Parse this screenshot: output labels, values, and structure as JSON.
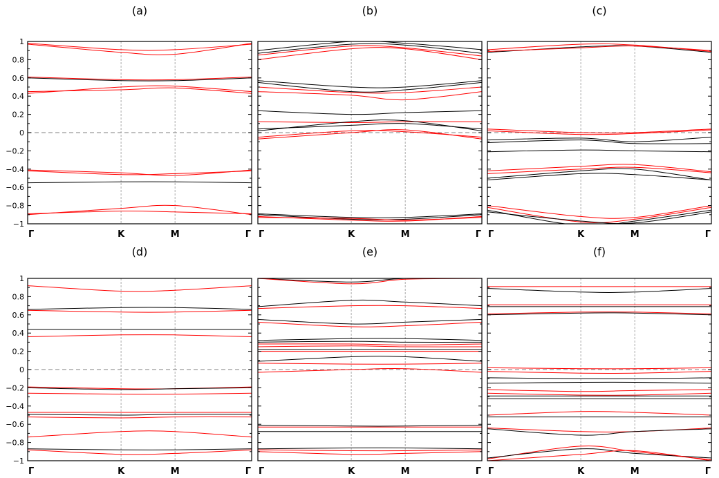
{
  "figure": {
    "background": "#ffffff"
  },
  "chart_data": [
    {
      "type": "line",
      "title": "(a)",
      "ylim": [
        -1,
        1
      ],
      "yticks": [
        1,
        0.8,
        0.6,
        0.4,
        0.2,
        0,
        -0.2,
        -0.4,
        -0.6,
        -0.8,
        -1
      ],
      "ytick_labels": [
        "1",
        "0.8",
        "0.6",
        "0.4",
        "0.2",
        "0",
        "−0.2",
        "−0.4",
        "−0.6",
        "−0.8",
        "−1"
      ],
      "x": [
        0,
        0.417,
        0.658,
        1
      ],
      "xtick_labels": [
        "Γ",
        "K",
        "M",
        "Γ"
      ],
      "fermi_level": 0,
      "series": [
        {
          "color": "#ff0000",
          "values": [
            0.97,
            0.88,
            0.86,
            0.98
          ]
        },
        {
          "color": "#ff0000",
          "values": [
            0.98,
            0.91,
            0.91,
            0.97
          ]
        },
        {
          "color": "#ff0000",
          "values": [
            0.61,
            0.58,
            0.58,
            0.61
          ]
        },
        {
          "color": "#000000",
          "values": [
            0.6,
            0.57,
            0.57,
            0.6
          ]
        },
        {
          "color": "#ff0000",
          "values": [
            0.43,
            0.5,
            0.51,
            0.45
          ]
        },
        {
          "color": "#ff0000",
          "values": [
            0.45,
            0.47,
            0.49,
            0.43
          ]
        },
        {
          "color": "#ff0000",
          "values": [
            -0.41,
            -0.44,
            -0.47,
            -0.41
          ]
        },
        {
          "color": "#ff0000",
          "values": [
            -0.42,
            -0.46,
            -0.45,
            -0.42
          ]
        },
        {
          "color": "#000000",
          "values": [
            -0.55,
            -0.54,
            -0.54,
            -0.55
          ]
        },
        {
          "color": "#ff0000",
          "values": [
            -0.9,
            -0.83,
            -0.8,
            -0.9
          ]
        },
        {
          "color": "#ff0000",
          "values": [
            -0.89,
            -0.86,
            -0.87,
            -0.89
          ]
        }
      ]
    },
    {
      "type": "line",
      "title": "(b)",
      "ylim": [
        -1,
        1
      ],
      "yticks": [
        1,
        0.8,
        0.6,
        0.4,
        0.2,
        0,
        -0.2,
        -0.4,
        -0.6,
        -0.8,
        -1
      ],
      "ytick_labels": [
        "",
        "",
        "",
        "",
        "",
        "",
        "",
        "",
        "",
        "",
        ""
      ],
      "x": [
        0,
        0.417,
        0.658,
        1
      ],
      "xtick_labels": [
        "Γ",
        "K",
        "M",
        "Γ"
      ],
      "fermi_level": 0,
      "series": [
        {
          "color": "#000000",
          "values": [
            0.9,
            1.0,
            0.98,
            0.91
          ]
        },
        {
          "color": "#000000",
          "values": [
            0.87,
            0.97,
            0.96,
            0.87
          ]
        },
        {
          "color": "#ff0000",
          "values": [
            0.85,
            0.95,
            0.93,
            0.84
          ]
        },
        {
          "color": "#ff0000",
          "values": [
            0.8,
            0.92,
            0.92,
            0.8
          ]
        },
        {
          "color": "#000000",
          "values": [
            0.57,
            0.5,
            0.5,
            0.57
          ]
        },
        {
          "color": "#000000",
          "values": [
            0.55,
            0.45,
            0.47,
            0.55
          ]
        },
        {
          "color": "#ff0000",
          "values": [
            0.5,
            0.44,
            0.44,
            0.5
          ]
        },
        {
          "color": "#ff0000",
          "values": [
            0.45,
            0.41,
            0.36,
            0.45
          ]
        },
        {
          "color": "#000000",
          "values": [
            0.24,
            0.2,
            0.22,
            0.24
          ]
        },
        {
          "color": "#ff0000",
          "values": [
            0.12,
            0.11,
            0.12,
            0.12
          ]
        },
        {
          "color": "#000000",
          "values": [
            0.02,
            0.12,
            0.13,
            0.02
          ]
        },
        {
          "color": "#000000",
          "values": [
            0.04,
            0.08,
            0.1,
            0.04
          ]
        },
        {
          "color": "#ff0000",
          "values": [
            -0.05,
            0.02,
            0.01,
            -0.05
          ]
        },
        {
          "color": "#ff0000",
          "values": [
            -0.07,
            0.0,
            0.03,
            -0.07
          ]
        },
        {
          "color": "#000000",
          "values": [
            -0.89,
            -0.93,
            -0.93,
            -0.89
          ]
        },
        {
          "color": "#000000",
          "values": [
            -0.9,
            -0.95,
            -0.95,
            -0.9
          ]
        },
        {
          "color": "#ff0000",
          "values": [
            -0.92,
            -0.96,
            -0.97,
            -0.92
          ]
        },
        {
          "color": "#ff0000",
          "values": [
            -0.93,
            -0.94,
            -0.96,
            -0.93
          ]
        }
      ]
    },
    {
      "type": "line",
      "title": "(c)",
      "ylim": [
        -1,
        1
      ],
      "yticks": [
        1,
        0.8,
        0.6,
        0.4,
        0.2,
        0,
        -0.2,
        -0.4,
        -0.6,
        -0.8,
        -1
      ],
      "ytick_labels": [
        "",
        "",
        "",
        "",
        "",
        "",
        "",
        "",
        "",
        "",
        ""
      ],
      "x": [
        0,
        0.417,
        0.658,
        1
      ],
      "xtick_labels": [
        "Γ",
        "K",
        "M",
        "Γ"
      ],
      "fermi_level": 0,
      "series": [
        {
          "color": "#ff0000",
          "values": [
            0.91,
            0.97,
            0.96,
            0.89
          ]
        },
        {
          "color": "#000000",
          "values": [
            0.88,
            0.94,
            0.95,
            0.88
          ]
        },
        {
          "color": "#ff0000",
          "values": [
            0.89,
            0.93,
            0.95,
            0.9
          ]
        },
        {
          "color": "#ff0000",
          "values": [
            0.04,
            0.0,
            0.0,
            0.04
          ]
        },
        {
          "color": "#ff0000",
          "values": [
            0.02,
            -0.02,
            -0.01,
            0.03
          ]
        },
        {
          "color": "#000000",
          "values": [
            -0.08,
            -0.06,
            -0.1,
            -0.05
          ]
        },
        {
          "color": "#000000",
          "values": [
            -0.11,
            -0.08,
            -0.12,
            -0.12
          ]
        },
        {
          "color": "#000000",
          "values": [
            -0.21,
            -0.19,
            -0.2,
            -0.21
          ]
        },
        {
          "color": "#ff0000",
          "values": [
            -0.42,
            -0.37,
            -0.35,
            -0.43
          ]
        },
        {
          "color": "#ff0000",
          "values": [
            -0.45,
            -0.4,
            -0.38,
            -0.44
          ]
        },
        {
          "color": "#000000",
          "values": [
            -0.5,
            -0.42,
            -0.4,
            -0.52
          ]
        },
        {
          "color": "#000000",
          "values": [
            -0.52,
            -0.45,
            -0.46,
            -0.52
          ]
        },
        {
          "color": "#ff0000",
          "values": [
            -0.8,
            -0.92,
            -0.93,
            -0.8
          ]
        },
        {
          "color": "#ff0000",
          "values": [
            -0.82,
            -0.98,
            -0.95,
            -0.82
          ]
        },
        {
          "color": "#000000",
          "values": [
            -0.87,
            -0.97,
            -0.99,
            -0.87
          ]
        },
        {
          "color": "#000000",
          "values": [
            -0.85,
            -1.02,
            -0.97,
            -0.85
          ]
        }
      ]
    },
    {
      "type": "line",
      "title": "(d)",
      "ylim": [
        -1,
        1
      ],
      "yticks": [
        1,
        0.8,
        0.6,
        0.4,
        0.2,
        0,
        -0.2,
        -0.4,
        -0.6,
        -0.8,
        -1
      ],
      "ytick_labels": [
        "1",
        "0.8",
        "0.6",
        "0.4",
        "0.2",
        "0",
        "−0.2",
        "−0.4",
        "−0.6",
        "−0.8",
        "−1"
      ],
      "x": [
        0,
        0.417,
        0.658,
        1
      ],
      "xtick_labels": [
        "Γ",
        "K",
        "M",
        "Γ"
      ],
      "fermi_level": 0,
      "series": [
        {
          "color": "#ff0000",
          "values": [
            0.92,
            0.86,
            0.87,
            0.92
          ]
        },
        {
          "color": "#000000",
          "values": [
            0.66,
            0.68,
            0.68,
            0.66
          ]
        },
        {
          "color": "#ff0000",
          "values": [
            0.65,
            0.63,
            0.63,
            0.65
          ]
        },
        {
          "color": "#000000",
          "values": [
            0.44,
            0.44,
            0.44,
            0.44
          ]
        },
        {
          "color": "#ff0000",
          "values": [
            0.36,
            0.38,
            0.38,
            0.36
          ]
        },
        {
          "color": "#ff0000",
          "values": [
            -0.19,
            -0.21,
            -0.21,
            -0.19
          ]
        },
        {
          "color": "#000000",
          "values": [
            -0.2,
            -0.22,
            -0.21,
            -0.2
          ]
        },
        {
          "color": "#ff0000",
          "values": [
            -0.26,
            -0.27,
            -0.27,
            -0.26
          ]
        },
        {
          "color": "#ff0000",
          "values": [
            -0.47,
            -0.47,
            -0.47,
            -0.47
          ]
        },
        {
          "color": "#000000",
          "values": [
            -0.49,
            -0.5,
            -0.49,
            -0.49
          ]
        },
        {
          "color": "#ff0000",
          "values": [
            -0.52,
            -0.53,
            -0.52,
            -0.52
          ]
        },
        {
          "color": "#ff0000",
          "values": [
            -0.74,
            -0.68,
            -0.68,
            -0.74
          ]
        },
        {
          "color": "#000000",
          "values": [
            -0.87,
            -0.88,
            -0.88,
            -0.87
          ]
        },
        {
          "color": "#ff0000",
          "values": [
            -0.88,
            -0.93,
            -0.92,
            -0.88
          ]
        }
      ]
    },
    {
      "type": "line",
      "title": "(e)",
      "ylim": [
        -1,
        1
      ],
      "yticks": [
        1,
        0.8,
        0.6,
        0.4,
        0.2,
        0,
        -0.2,
        -0.4,
        -0.6,
        -0.8,
        -1
      ],
      "ytick_labels": [
        "",
        "",
        "",
        "",
        "",
        "",
        "",
        "",
        "",
        "",
        ""
      ],
      "x": [
        0,
        0.417,
        0.658,
        1
      ],
      "xtick_labels": [
        "Γ",
        "K",
        "M",
        "Γ"
      ],
      "fermi_level": 0,
      "series": [
        {
          "color": "#000000",
          "values": [
            1.0,
            0.96,
            1.0,
            1.0
          ]
        },
        {
          "color": "#ff0000",
          "values": [
            1.0,
            0.94,
            0.99,
            1.0
          ]
        },
        {
          "color": "#000000",
          "values": [
            0.69,
            0.76,
            0.74,
            0.7
          ]
        },
        {
          "color": "#ff0000",
          "values": [
            0.67,
            0.7,
            0.7,
            0.67
          ]
        },
        {
          "color": "#000000",
          "values": [
            0.55,
            0.5,
            0.52,
            0.55
          ]
        },
        {
          "color": "#ff0000",
          "values": [
            0.52,
            0.47,
            0.48,
            0.52
          ]
        },
        {
          "color": "#000000",
          "values": [
            0.32,
            0.34,
            0.34,
            0.32
          ]
        },
        {
          "color": "#000000",
          "values": [
            0.3,
            0.31,
            0.3,
            0.3
          ]
        },
        {
          "color": "#ff0000",
          "values": [
            0.28,
            0.28,
            0.27,
            0.28
          ]
        },
        {
          "color": "#ff0000",
          "values": [
            0.25,
            0.26,
            0.25,
            0.25
          ]
        },
        {
          "color": "#000000",
          "values": [
            0.22,
            0.22,
            0.22,
            0.22
          ]
        },
        {
          "color": "#ff0000",
          "values": [
            0.2,
            0.2,
            0.2,
            0.2
          ]
        },
        {
          "color": "#000000",
          "values": [
            0.09,
            0.14,
            0.14,
            0.09
          ]
        },
        {
          "color": "#ff0000",
          "values": [
            0.07,
            0.06,
            0.06,
            0.07
          ]
        },
        {
          "color": "#ff0000",
          "values": [
            -0.03,
            0.0,
            0.01,
            -0.03
          ]
        },
        {
          "color": "#000000",
          "values": [
            -0.61,
            -0.62,
            -0.62,
            -0.61
          ]
        },
        {
          "color": "#ff0000",
          "values": [
            -0.63,
            -0.63,
            -0.63,
            -0.63
          ]
        },
        {
          "color": "#000000",
          "values": [
            -0.68,
            -0.68,
            -0.68,
            -0.68
          ]
        },
        {
          "color": "#ff0000",
          "values": [
            -0.88,
            -0.89,
            -0.89,
            -0.88
          ]
        },
        {
          "color": "#000000",
          "values": [
            -0.87,
            -0.86,
            -0.86,
            -0.87
          ]
        },
        {
          "color": "#ff0000",
          "values": [
            -0.9,
            -0.93,
            -0.92,
            -0.9
          ]
        }
      ]
    },
    {
      "type": "line",
      "title": "(f)",
      "ylim": [
        -1,
        1
      ],
      "yticks": [
        1,
        0.8,
        0.6,
        0.4,
        0.2,
        0,
        -0.2,
        -0.4,
        -0.6,
        -0.8,
        -1
      ],
      "ytick_labels": [
        "",
        "",
        "",
        "",
        "",
        "",
        "",
        "",
        "",
        "",
        ""
      ],
      "x": [
        0,
        0.417,
        0.658,
        1
      ],
      "xtick_labels": [
        "Γ",
        "K",
        "M",
        "Γ"
      ],
      "fermi_level": 0,
      "series": [
        {
          "color": "#ff0000",
          "values": [
            0.91,
            0.91,
            0.91,
            0.91
          ]
        },
        {
          "color": "#000000",
          "values": [
            0.89,
            0.85,
            0.85,
            0.89
          ]
        },
        {
          "color": "#ff0000",
          "values": [
            0.71,
            0.71,
            0.71,
            0.71
          ]
        },
        {
          "color": "#000000",
          "values": [
            0.69,
            0.69,
            0.69,
            0.69
          ]
        },
        {
          "color": "#ff0000",
          "values": [
            0.61,
            0.63,
            0.63,
            0.61
          ]
        },
        {
          "color": "#000000",
          "values": [
            0.6,
            0.62,
            0.62,
            0.6
          ]
        },
        {
          "color": "#ff0000",
          "values": [
            0.02,
            0.01,
            0.01,
            0.02
          ]
        },
        {
          "color": "#ff0000",
          "values": [
            -0.02,
            -0.04,
            -0.04,
            -0.02
          ]
        },
        {
          "color": "#000000",
          "values": [
            -0.09,
            -0.1,
            -0.1,
            -0.09
          ]
        },
        {
          "color": "#000000",
          "values": [
            -0.15,
            -0.14,
            -0.14,
            -0.15
          ]
        },
        {
          "color": "#ff0000",
          "values": [
            -0.22,
            -0.24,
            -0.23,
            -0.22
          ]
        },
        {
          "color": "#ff0000",
          "values": [
            -0.26,
            -0.28,
            -0.28,
            -0.26
          ]
        },
        {
          "color": "#000000",
          "values": [
            -0.29,
            -0.29,
            -0.29,
            -0.29
          ]
        },
        {
          "color": "#000000",
          "values": [
            -0.32,
            -0.32,
            -0.32,
            -0.32
          ]
        },
        {
          "color": "#ff0000",
          "values": [
            -0.5,
            -0.46,
            -0.47,
            -0.5
          ]
        },
        {
          "color": "#000000",
          "values": [
            -0.52,
            -0.52,
            -0.52,
            -0.52
          ]
        },
        {
          "color": "#ff0000",
          "values": [
            -0.64,
            -0.68,
            -0.68,
            -0.64
          ]
        },
        {
          "color": "#000000",
          "values": [
            -0.65,
            -0.72,
            -0.68,
            -0.65
          ]
        },
        {
          "color": "#ff0000",
          "values": [
            -0.98,
            -0.84,
            -0.9,
            -0.99
          ]
        },
        {
          "color": "#000000",
          "values": [
            -0.97,
            -0.87,
            -0.92,
            -0.97
          ]
        },
        {
          "color": "#ff0000",
          "values": [
            -1.0,
            -0.93,
            -0.89,
            -1.0
          ]
        }
      ]
    }
  ]
}
